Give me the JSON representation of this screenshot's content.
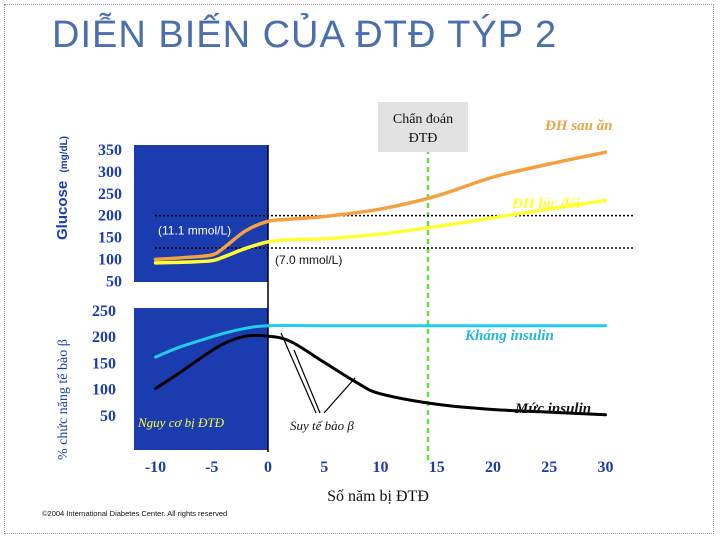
{
  "slide": {
    "title": "DIỄN BIẾN CỦA ĐTĐ TÝP 2",
    "copyright": "©2004 International Diabetes Center.  All rights reserved"
  },
  "colors": {
    "title": "#4a6fae",
    "panel": "#1a3cae",
    "post_meal": "#f5a040",
    "fasting": "#ffff33",
    "insulin_resistance": "#22ccee",
    "insulin_level": "#000000",
    "diagnosis_line": "#66dd44",
    "annotation_orange": "#e6a64a",
    "annotation_cyan": "#22b8d8"
  },
  "chart_data": [
    {
      "type": "line",
      "panel": "glucose",
      "ylabel_main": "Glucose",
      "ylabel_unit": "(mg/dL)",
      "yticks": [
        350,
        300,
        250,
        200,
        150,
        100,
        50
      ],
      "ylim": [
        50,
        370
      ],
      "xlim": [
        -10,
        30
      ],
      "series": [
        {
          "name": "ĐH sau ăn",
          "color": "#f5a040",
          "x": [
            -10,
            -7,
            -5,
            -4,
            -2,
            0,
            2,
            5,
            10,
            15,
            20,
            25,
            30
          ],
          "y": [
            100,
            105,
            110,
            125,
            165,
            187,
            192,
            198,
            215,
            245,
            288,
            318,
            345
          ]
        },
        {
          "name": "ĐH lúc đói",
          "color": "#ffff33",
          "x": [
            -10,
            -7,
            -5,
            -4,
            -2,
            0,
            2,
            5,
            10,
            15,
            20,
            25,
            30
          ],
          "y": [
            92,
            94,
            97,
            105,
            125,
            140,
            145,
            147,
            158,
            175,
            195,
            215,
            235
          ]
        }
      ],
      "reference_lines": [
        {
          "label": "(11.1 mmol/L)",
          "y": 200
        },
        {
          "label": "(7.0 mmol/L)",
          "y": 126
        }
      ],
      "annotations": {
        "diagnosis_label": "Chẩn đoán ĐTĐ",
        "post_meal_label": "ĐH sau ăn",
        "fasting_label": "ĐH lúc đói"
      }
    },
    {
      "type": "line",
      "panel": "beta_cell_function",
      "ylabel": "% chức năng tế bào β",
      "yticks": [
        250,
        200,
        150,
        100,
        50
      ],
      "ylim": [
        30,
        270
      ],
      "xlabel": "Số năm bị ĐTĐ",
      "xticks": [
        "-10",
        "-5",
        "0",
        "5",
        "10",
        "15",
        "20",
        "25",
        "30"
      ],
      "xlim": [
        -10,
        30
      ],
      "series": [
        {
          "name": "Kháng insulin",
          "color": "#22ccee",
          "x": [
            -10,
            -8,
            -6,
            -4,
            -2,
            0,
            5,
            10,
            15,
            20,
            25,
            30
          ],
          "y": [
            160,
            178,
            192,
            205,
            215,
            220,
            220,
            220,
            220,
            220,
            220,
            220
          ]
        },
        {
          "name": "Mức insulin",
          "color": "#000000",
          "x": [
            -10,
            -8,
            -6,
            -4,
            -2,
            0,
            2,
            5,
            8,
            10,
            15,
            20,
            25,
            30
          ],
          "y": [
            100,
            128,
            158,
            185,
            200,
            200,
            190,
            150,
            110,
            90,
            70,
            60,
            55,
            50
          ]
        }
      ],
      "annotations": {
        "resistance_label": "Kháng insulin",
        "insulin_label": "Mức insulin",
        "risk_label": "Nguy cơ bị ĐTĐ",
        "beta_failure_label": "Suy tế bào β"
      }
    }
  ]
}
